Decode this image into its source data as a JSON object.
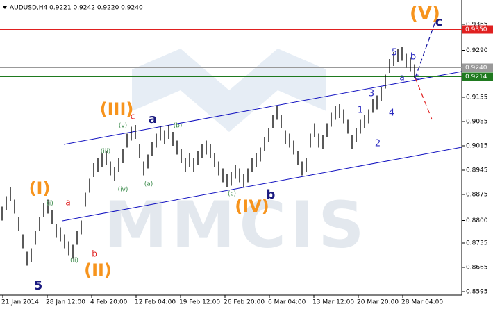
{
  "chart_data": {
    "type": "ohlc",
    "title": "AUDUSD,H4  0.9221 0.9242 0.9220 0.9240",
    "watermark": "MMCIS",
    "bar_color": "#000000",
    "ylim": [
      0.8585,
      0.9435
    ],
    "yticks": [
      0.9365,
      {
        "value": 0.929,
        "label": "0.9290"
      },
      0.9215,
      0.9155,
      0.9085,
      0.9015,
      0.8945,
      0.8875,
      {
        "value": 0.88,
        "label": "0.8800"
      },
      0.8735,
      0.8665,
      0.8595
    ],
    "categories": [
      "21 Jan 2014",
      "28 Jan 12:00",
      "4 Feb 20:00",
      "12 Feb 04:00",
      "19 Feb 12:00",
      "26 Feb 20:00",
      "6 Mar 04:00",
      "13 Mar 12:00",
      "20 Mar 20:00",
      "28 Mar 04:00"
    ],
    "high": [
      0.884,
      0.887,
      0.8895,
      0.886,
      0.881,
      0.876,
      0.871,
      0.872,
      0.877,
      0.881,
      0.885,
      0.886,
      0.883,
      0.879,
      0.878,
      0.876,
      0.874,
      0.873,
      0.877,
      0.88,
      0.888,
      0.892,
      0.8965,
      0.898,
      0.8995,
      0.9,
      0.897,
      0.8955,
      0.898,
      0.9005,
      0.905,
      0.907,
      0.9075,
      0.902,
      0.897,
      0.899,
      0.9025,
      0.905,
      0.907,
      0.906,
      0.9075,
      0.9055,
      0.903,
      0.9005,
      0.898,
      0.8995,
      0.898,
      0.9,
      0.902,
      0.903,
      0.902,
      0.8995,
      0.897,
      0.895,
      0.8935,
      0.894,
      0.896,
      0.895,
      0.8935,
      0.895,
      0.898,
      0.8995,
      0.901,
      0.904,
      0.9065,
      0.9105,
      0.913,
      0.9105,
      0.906,
      0.905,
      0.903,
      0.9,
      0.897,
      0.898,
      0.905,
      0.908,
      0.905,
      0.9045,
      0.908,
      0.911,
      0.913,
      0.9135,
      0.912,
      0.909,
      0.9045,
      0.9065,
      0.909,
      0.9105,
      0.912,
      0.915,
      0.916,
      0.9185,
      0.922,
      0.9265,
      0.9285,
      0.9295,
      0.93,
      0.928,
      0.927,
      0.925
    ],
    "low": [
      0.88,
      0.883,
      0.8855,
      0.882,
      0.877,
      0.872,
      0.867,
      0.868,
      0.873,
      0.877,
      0.881,
      0.882,
      0.879,
      0.875,
      0.874,
      0.872,
      0.87,
      0.869,
      0.873,
      0.876,
      0.884,
      0.888,
      0.8925,
      0.894,
      0.8955,
      0.896,
      0.893,
      0.8915,
      0.894,
      0.8965,
      0.901,
      0.903,
      0.9035,
      0.898,
      0.893,
      0.895,
      0.8985,
      0.901,
      0.903,
      0.902,
      0.9035,
      0.9015,
      0.899,
      0.8965,
      0.894,
      0.8955,
      0.894,
      0.896,
      0.898,
      0.899,
      0.898,
      0.8955,
      0.893,
      0.891,
      0.8895,
      0.89,
      0.892,
      0.891,
      0.8895,
      0.891,
      0.894,
      0.8955,
      0.897,
      0.9,
      0.9025,
      0.9065,
      0.909,
      0.9065,
      0.902,
      0.901,
      0.899,
      0.896,
      0.893,
      0.894,
      0.901,
      0.904,
      0.901,
      0.9005,
      0.904,
      0.907,
      0.909,
      0.9095,
      0.908,
      0.905,
      0.9005,
      0.9025,
      0.905,
      0.9065,
      0.908,
      0.911,
      0.912,
      0.9145,
      0.918,
      0.9225,
      0.9245,
      0.9255,
      0.926,
      0.924,
      0.923,
      0.921
    ],
    "hlines": [
      {
        "value": 0.935,
        "label": "0.9350",
        "color": "#e02020"
      },
      {
        "value": 0.924,
        "label": "0.9240",
        "color": "#999999"
      },
      {
        "value": 0.9214,
        "label": "0.9214",
        "color": "#1f7a1f"
      }
    ],
    "annotations": [
      {
        "text": "5",
        "color": "#1a1a80"
      },
      {
        "text": "(I)",
        "color": "#f7941d"
      },
      {
        "text": "(i)",
        "color": "#3a8a4a"
      },
      {
        "text": "a",
        "color": "#e02020"
      },
      {
        "text": "(ii)",
        "color": "#3a8a4a"
      },
      {
        "text": "b",
        "color": "#e02020"
      },
      {
        "text": "(II)",
        "color": "#f7941d"
      },
      {
        "text": "(iii)",
        "color": "#3a8a4a"
      },
      {
        "text": "(iv)",
        "color": "#3a8a4a"
      },
      {
        "text": "(III)",
        "color": "#f7941d"
      },
      {
        "text": "c",
        "color": "#e02020"
      },
      {
        "text": "(v)",
        "color": "#3a8a4a"
      },
      {
        "text": "a",
        "color": "#1a1a80"
      },
      {
        "text": "(a)",
        "color": "#3a8a4a"
      },
      {
        "text": "(b)",
        "color": "#3a8a4a"
      },
      {
        "text": "(c)",
        "color": "#3a8a4a"
      },
      {
        "text": "(IV)",
        "color": "#f7941d"
      },
      {
        "text": "b",
        "color": "#1a1a80"
      },
      {
        "text": "1",
        "color": "#2a2ac0"
      },
      {
        "text": "2",
        "color": "#2a2ac0"
      },
      {
        "text": "3",
        "color": "#2a2ac0"
      },
      {
        "text": "4",
        "color": "#2a2ac0"
      },
      {
        "text": "5",
        "color": "#2a2ac0"
      },
      {
        "text": "a",
        "color": "#2a2ac0"
      },
      {
        "text": "b",
        "color": "#2a2ac0"
      },
      {
        "text": "c",
        "color": "#2a2ac0"
      },
      {
        "text": "(V)",
        "color": "#f7941d"
      },
      {
        "text": "c",
        "color": "#1a1a80"
      }
    ]
  }
}
